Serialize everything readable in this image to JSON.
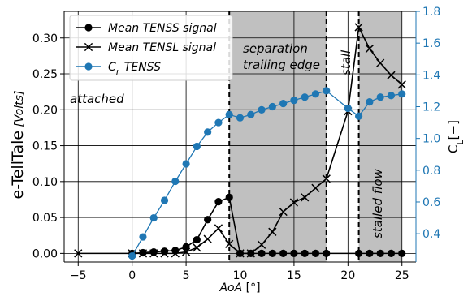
{
  "chart_data": {
    "type": "line",
    "xlabel": "AoA [°]",
    "ylabel_left_main": "e-TellTale",
    "ylabel_left_unit": "[Volts]",
    "ylabel_right": "C_L[−]",
    "xlim": [
      -6.3,
      26.3
    ],
    "ylim_left": [
      -0.012,
      0.337
    ],
    "ylim_right": [
      0.222,
      1.8
    ],
    "xticks": [
      -5,
      0,
      5,
      10,
      15,
      20,
      25
    ],
    "yticks_left": [
      "0.00",
      "0.05",
      "0.10",
      "0.15",
      "0.20",
      "0.25",
      "0.30"
    ],
    "yticks_right": [
      "0.4",
      "0.6",
      "0.8",
      "1.0",
      "1.2",
      "1.4",
      "1.6",
      "1.8"
    ],
    "grid": true,
    "shaded_regions": [
      [
        9,
        18
      ],
      [
        21,
        25
      ]
    ],
    "vlines": [
      9,
      18,
      21
    ],
    "annotations": {
      "attached": "attached",
      "separation_line1": "separation",
      "separation_line2": "trailing edge",
      "stall": "stall",
      "stalled_flow": "stalled flow"
    },
    "legend_position": "upper-left",
    "series": [
      {
        "name": "Mean TENSS signal",
        "axis": "left",
        "color": "#000000",
        "marker": "circle",
        "x": [
          0,
          1,
          2,
          3,
          4,
          5,
          6,
          7,
          8,
          9,
          10,
          11,
          12,
          13,
          14,
          15,
          16,
          17,
          18,
          21,
          22,
          23,
          24,
          25
        ],
        "y": [
          0.0,
          0.001,
          0.002,
          0.003,
          0.004,
          0.009,
          0.019,
          0.047,
          0.072,
          0.078,
          0.0,
          0.0,
          0.0,
          0.0,
          0.0,
          0.0,
          0.0,
          0.0,
          0.0,
          0.0,
          0.0,
          0.0,
          0.0,
          0.0
        ]
      },
      {
        "name": "Mean TENSL signal",
        "axis": "left",
        "color": "#000000",
        "marker": "x",
        "x": [
          -5,
          0,
          1,
          2,
          3,
          4,
          5,
          6,
          7,
          8,
          9,
          10,
          11,
          12,
          13,
          14,
          15,
          16,
          17,
          18,
          20,
          21,
          22,
          23,
          24,
          25
        ],
        "y": [
          0.0,
          0.0,
          0.0,
          0.0,
          0.0,
          0.0,
          0.002,
          0.008,
          0.02,
          0.035,
          0.013,
          0.0,
          0.0,
          0.012,
          0.03,
          0.058,
          0.071,
          0.078,
          0.091,
          0.104,
          0.198,
          0.315,
          0.285,
          0.265,
          0.248,
          0.235
        ]
      },
      {
        "name": "C_L TENSS",
        "axis": "right",
        "color": "#1f77b4",
        "marker": "circle",
        "x": [
          0,
          1,
          2,
          3,
          4,
          5,
          6,
          7,
          8,
          9,
          10,
          11,
          12,
          13,
          14,
          15,
          16,
          17,
          18,
          20,
          21,
          22,
          23,
          24,
          25
        ],
        "y": [
          0.26,
          0.38,
          0.5,
          0.61,
          0.73,
          0.84,
          0.95,
          1.04,
          1.1,
          1.15,
          1.13,
          1.15,
          1.18,
          1.2,
          1.22,
          1.24,
          1.26,
          1.28,
          1.3,
          1.19,
          1.14,
          1.23,
          1.26,
          1.27,
          1.28
        ]
      }
    ]
  }
}
